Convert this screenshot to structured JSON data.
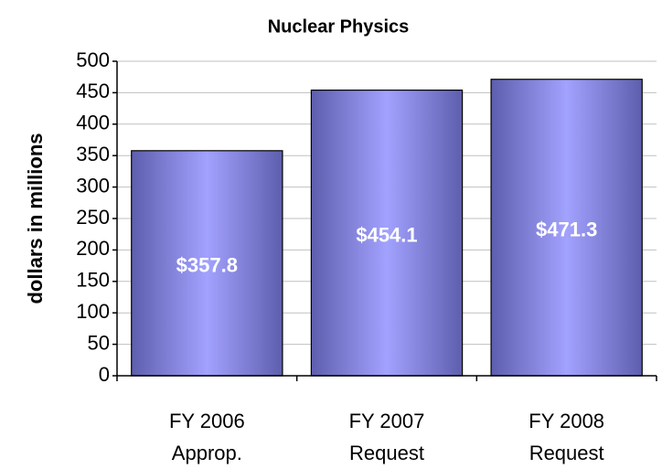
{
  "chart_data": {
    "type": "bar",
    "title": "Nuclear Physics",
    "y_label": "dollars in millions",
    "categories": [
      [
        "FY 2006",
        "Approp."
      ],
      [
        "FY 2007",
        "Request"
      ],
      [
        "FY 2008",
        "Request"
      ]
    ],
    "values": [
      357.8,
      454.1,
      471.3
    ],
    "value_labels": [
      "$357.8",
      "$454.1",
      "$471.3"
    ],
    "color": "#9999ff",
    "ylim": [
      0,
      500
    ],
    "yticks": [
      0,
      50,
      100,
      150,
      200,
      250,
      300,
      350,
      400,
      450,
      500
    ],
    "grid": true
  }
}
